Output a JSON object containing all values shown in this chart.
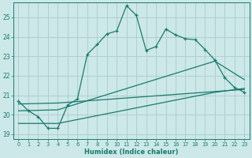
{
  "xlabel": "Humidex (Indice chaleur)",
  "xlim": [
    -0.5,
    23.5
  ],
  "ylim": [
    18.75,
    25.75
  ],
  "yticks": [
    19,
    20,
    21,
    22,
    23,
    24,
    25
  ],
  "xticks": [
    0,
    1,
    2,
    3,
    4,
    5,
    6,
    7,
    8,
    9,
    10,
    11,
    12,
    13,
    14,
    15,
    16,
    17,
    18,
    19,
    20,
    21,
    22,
    23
  ],
  "bg_color": "#cce8e8",
  "line_color": "#1a7a6e",
  "grid_color": "#aacccc",
  "main_line": {
    "x": [
      0,
      1,
      2,
      3,
      4,
      5,
      6,
      7,
      8,
      9,
      10,
      11,
      12,
      13,
      14,
      15,
      16,
      17,
      18,
      19,
      20,
      21,
      22,
      23
    ],
    "y": [
      20.7,
      20.2,
      19.9,
      19.3,
      19.3,
      20.5,
      20.8,
      23.1,
      23.6,
      24.15,
      24.3,
      25.6,
      25.1,
      23.3,
      23.5,
      24.4,
      24.1,
      23.9,
      23.85,
      23.35,
      22.8,
      21.9,
      21.4,
      21.15
    ]
  },
  "smooth_lines": [
    {
      "x": [
        0,
        4,
        23
      ],
      "y": [
        20.55,
        20.6,
        21.3
      ]
    },
    {
      "x": [
        0,
        4,
        20,
        23
      ],
      "y": [
        20.2,
        20.25,
        22.75,
        21.8
      ]
    },
    {
      "x": [
        0,
        4,
        20,
        23
      ],
      "y": [
        19.55,
        19.55,
        21.15,
        21.35
      ]
    }
  ]
}
